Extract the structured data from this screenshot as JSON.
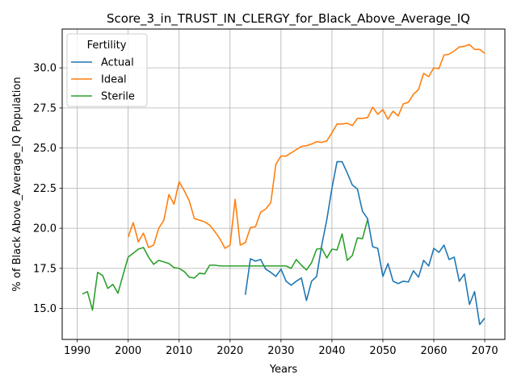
{
  "chart_data": {
    "type": "line",
    "title": "Score_3_in_TRUST_IN_CLERGY_for_Black_Above_Average_IQ",
    "xlabel": "Years",
    "ylabel": "% of Black Above_Average_IQ Population",
    "xlim": [
      1987.05,
      2073.95
    ],
    "ylim": [
      13.07,
      32.42
    ],
    "xticks": [
      1990,
      2000,
      2010,
      2020,
      2030,
      2040,
      2050,
      2060,
      2070
    ],
    "yticks": [
      15.0,
      17.5,
      20.0,
      22.5,
      25.0,
      27.5,
      30.0
    ],
    "ytick_labels": [
      "15.0",
      "17.5",
      "20.0",
      "22.5",
      "25.0",
      "27.5",
      "30.0"
    ],
    "grid": true,
    "legend": {
      "title": "Fertility",
      "placement": "top-left"
    },
    "series": [
      {
        "name": "Actual",
        "color": "#1f77b4",
        "x": [
          2023,
          2024,
          2025,
          2026,
          2027,
          2028,
          2029,
          2030,
          2031,
          2032,
          2033,
          2034,
          2035,
          2036,
          2037,
          2038,
          2039,
          2040,
          2041,
          2042,
          2043,
          2044,
          2045,
          2046,
          2047,
          2048,
          2049,
          2050,
          2051,
          2052,
          2053,
          2054,
          2055,
          2056,
          2057,
          2058,
          2059,
          2060,
          2061,
          2062,
          2063,
          2064,
          2065,
          2066,
          2067,
          2068,
          2069,
          2070
        ],
        "values": [
          15.85,
          18.1,
          17.95,
          18.05,
          17.45,
          17.25,
          17.0,
          17.45,
          16.7,
          16.45,
          16.7,
          16.9,
          15.5,
          16.7,
          17.0,
          18.95,
          20.55,
          22.5,
          24.15,
          24.15,
          23.45,
          22.7,
          22.45,
          21.05,
          20.6,
          18.85,
          18.75,
          17.0,
          17.8,
          16.7,
          16.55,
          16.7,
          16.65,
          17.35,
          16.95,
          18.0,
          17.65,
          18.75,
          18.5,
          18.95,
          18.05,
          18.2,
          16.7,
          17.15,
          15.25,
          16.05,
          14.0,
          14.4
        ]
      },
      {
        "name": "Ideal",
        "color": "#ff7f0e",
        "x": [
          2000,
          2001,
          2002,
          2003,
          2004,
          2005,
          2006,
          2007,
          2008,
          2009,
          2010,
          2011,
          2012,
          2013,
          2014,
          2015,
          2016,
          2017,
          2018,
          2019,
          2020,
          2021,
          2022,
          2023,
          2024,
          2025,
          2026,
          2027,
          2028,
          2029,
          2030,
          2031,
          2032,
          2033,
          2034,
          2035,
          2036,
          2037,
          2038,
          2039,
          2040,
          2041,
          2042,
          2043,
          2044,
          2045,
          2046,
          2047,
          2048,
          2049,
          2050,
          2051,
          2052,
          2053,
          2054,
          2055,
          2056,
          2057,
          2058,
          2059,
          2060,
          2061,
          2062,
          2063,
          2064,
          2065,
          2066,
          2067,
          2068,
          2069,
          2070
        ],
        "values": [
          19.45,
          20.35,
          19.15,
          19.7,
          18.8,
          18.95,
          20.0,
          20.5,
          22.1,
          21.5,
          22.9,
          22.35,
          21.7,
          20.6,
          20.5,
          20.4,
          20.2,
          19.8,
          19.35,
          18.75,
          18.95,
          21.8,
          18.95,
          19.1,
          20.05,
          20.1,
          21.0,
          21.2,
          21.6,
          24.0,
          24.5,
          24.5,
          24.7,
          24.9,
          25.1,
          25.15,
          25.25,
          25.4,
          25.35,
          25.45,
          25.95,
          26.5,
          26.5,
          26.55,
          26.4,
          26.85,
          26.85,
          26.9,
          27.55,
          27.1,
          27.4,
          26.8,
          27.3,
          27.0,
          27.75,
          27.85,
          28.35,
          28.65,
          29.65,
          29.45,
          30.0,
          29.95,
          30.8,
          30.85,
          31.05,
          31.3,
          31.35,
          31.45,
          31.15,
          31.15,
          30.9
        ]
      },
      {
        "name": "Sterile",
        "color": "#2ca02c",
        "x": [
          1991,
          1992,
          1993,
          1994,
          1995,
          1996,
          1997,
          1998,
          1999,
          2000,
          2001,
          2002,
          2003,
          2004,
          2005,
          2006,
          2007,
          2008,
          2009,
          2010,
          2011,
          2012,
          2013,
          2014,
          2015,
          2016,
          2017,
          2018,
          2019,
          2020,
          2021,
          2022,
          2023,
          2024,
          2025,
          2026,
          2027,
          2028,
          2029,
          2030,
          2031,
          2032,
          2033,
          2034,
          2035,
          2036,
          2037,
          2038,
          2039,
          2040,
          2041,
          2042,
          2043,
          2044,
          2045,
          2046,
          2047
        ],
        "values": [
          15.9,
          16.05,
          14.9,
          17.25,
          17.05,
          16.25,
          16.5,
          15.95,
          17.1,
          18.2,
          18.45,
          18.7,
          18.8,
          18.2,
          17.75,
          18.0,
          17.9,
          17.8,
          17.55,
          17.5,
          17.3,
          16.95,
          16.9,
          17.2,
          17.15,
          17.7,
          17.7,
          17.65,
          17.65,
          17.65,
          17.65,
          17.65,
          17.65,
          17.65,
          17.65,
          17.65,
          17.65,
          17.65,
          17.65,
          17.65,
          17.65,
          17.5,
          18.05,
          17.7,
          17.4,
          17.85,
          18.7,
          18.75,
          18.15,
          18.7,
          18.65,
          19.65,
          18.0,
          18.3,
          19.4,
          19.35,
          20.55
        ]
      }
    ]
  }
}
